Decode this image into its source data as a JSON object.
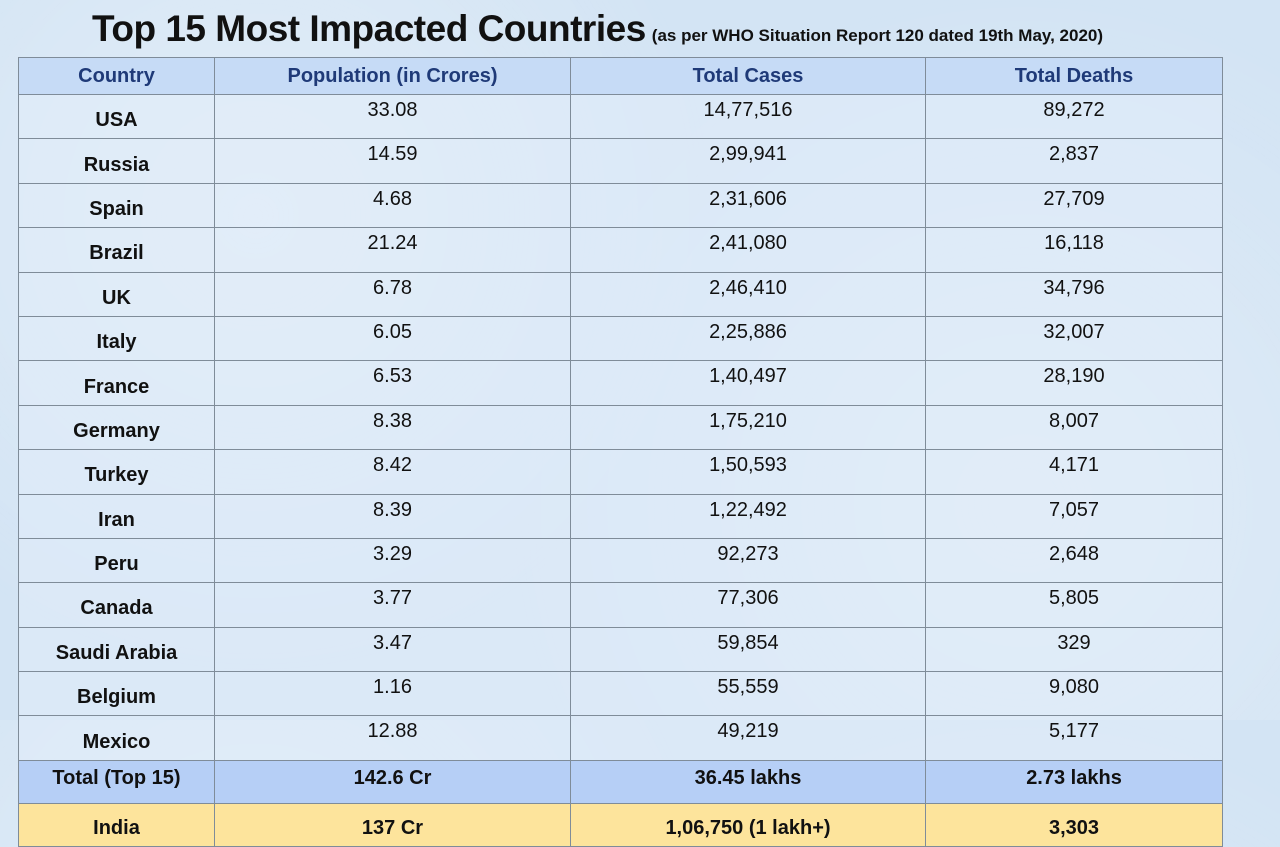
{
  "title": {
    "main": "Top 15 Most Impacted Countries",
    "sub": "(as per WHO Situation  Report 120 dated 19th May, 2020)"
  },
  "table": {
    "headers": [
      "Country",
      "Population (in Crores)",
      "Total Cases",
      "Total Deaths"
    ],
    "rows": [
      [
        "USA",
        "33.08",
        "14,77,516",
        "89,272"
      ],
      [
        "Russia",
        "14.59",
        "2,99,941",
        "2,837"
      ],
      [
        "Spain",
        "4.68",
        "2,31,606",
        "27,709"
      ],
      [
        "Brazil",
        "21.24",
        "2,41,080",
        "16,118"
      ],
      [
        "UK",
        "6.78",
        "2,46,410",
        "34,796"
      ],
      [
        "Italy",
        "6.05",
        "2,25,886",
        "32,007"
      ],
      [
        "France",
        "6.53",
        "1,40,497",
        "28,190"
      ],
      [
        "Germany",
        "8.38",
        "1,75,210",
        "8,007"
      ],
      [
        "Turkey",
        "8.42",
        "1,50,593",
        "4,171"
      ],
      [
        "Iran",
        "8.39",
        "1,22,492",
        "7,057"
      ],
      [
        "Peru",
        "3.29",
        "92,273",
        "2,648"
      ],
      [
        "Canada",
        "3.77",
        "77,306",
        "5,805"
      ],
      [
        "Saudi Arabia",
        "3.47",
        "59,854",
        "329"
      ],
      [
        "Belgium",
        "1.16",
        "55,559",
        "9,080"
      ],
      [
        "Mexico",
        "12.88",
        "49,219",
        "5,177"
      ]
    ],
    "total": [
      "Total (Top 15)",
      "142.6 Cr",
      "36.45 lakhs",
      "2.73 lakhs"
    ],
    "india": [
      "India",
      "137 Cr",
      "1,06,750 (1 lakh+)",
      "3,303"
    ]
  },
  "colors": {
    "header_bg": "#c6dbf6",
    "header_text": "#1f3a78",
    "total_bg": "#b6cff6",
    "india_bg": "#fde49c"
  }
}
